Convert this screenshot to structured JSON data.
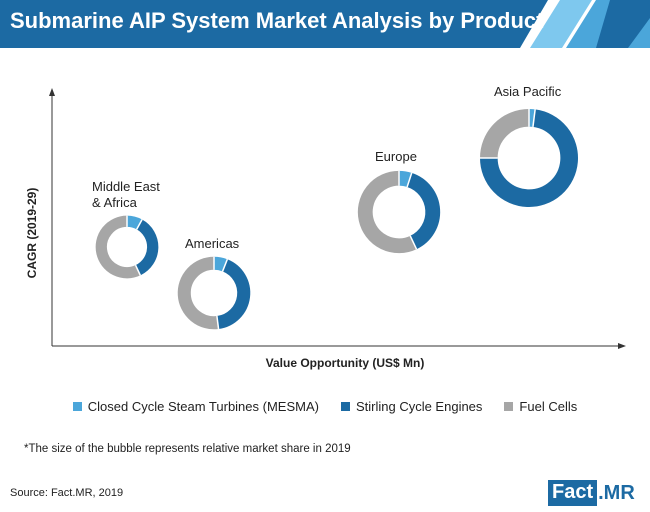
{
  "header": {
    "title": "Submarine AIP System Market Analysis by Product",
    "colors": {
      "primary": "#1c6aa3",
      "accent_light": "#7ec8ee",
      "accent_mid": "#4ba6da"
    }
  },
  "chart_data": {
    "type": "bubble-donut",
    "xlabel": "Value Opportunity (US$ Mn)",
    "ylabel": "CAGR (2019-29)",
    "axes_ticks": "none",
    "grid": false,
    "legend_position": "bottom",
    "series": [
      {
        "name": "Closed Cycle Steam Turbines (MESMA)",
        "color": "#4ba6da"
      },
      {
        "name": "Stirling Cycle Engines",
        "color": "#1c6aa3"
      },
      {
        "name": "Fuel Cells",
        "color": "#a6a6a6"
      }
    ],
    "regions": [
      {
        "name": "Middle East\n& Africa",
        "relative_size": 0.64,
        "shares": [
          0.08,
          0.35,
          0.57
        ]
      },
      {
        "name": "Americas",
        "relative_size": 0.74,
        "shares": [
          0.06,
          0.42,
          0.52
        ]
      },
      {
        "name": "Europe",
        "relative_size": 0.84,
        "shares": [
          0.05,
          0.38,
          0.57
        ]
      },
      {
        "name": "Asia Pacific",
        "relative_size": 1.0,
        "shares": [
          0.02,
          0.73,
          0.25
        ]
      }
    ]
  },
  "footnote": "*The size of the bubble represents relative market share in 2019",
  "source": "Source: Fact.MR, 2019",
  "logo": {
    "part1": "Fact",
    "part2": ".MR"
  }
}
